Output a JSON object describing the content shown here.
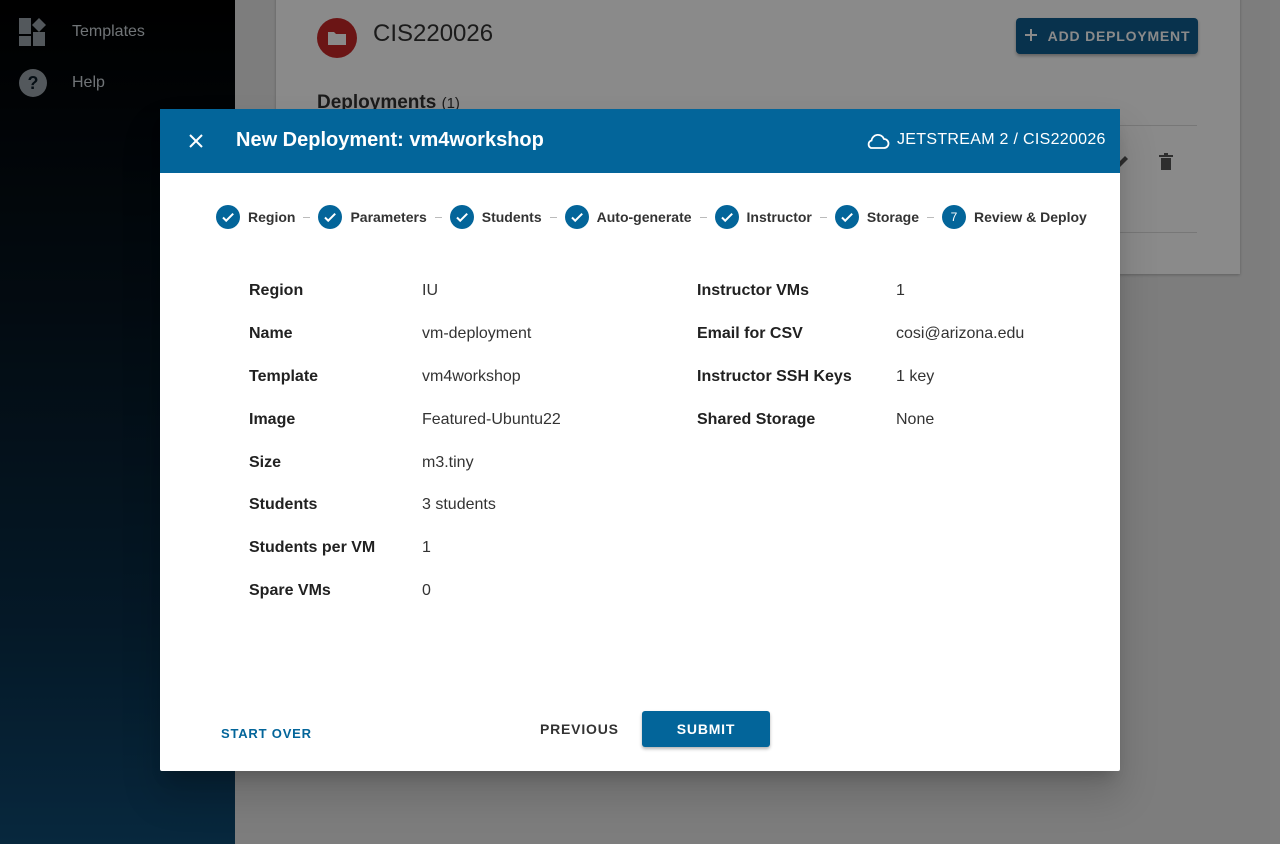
{
  "sidebar": {
    "items": [
      {
        "label": "Templates",
        "icon": "dashboard-icon"
      },
      {
        "label": "Help",
        "icon": "help-icon"
      }
    ]
  },
  "project": {
    "title": "CIS220026",
    "add_button_label": "ADD DEPLOYMENT",
    "deployments_heading": "Deployments",
    "deployments_count": "(1)"
  },
  "dialog": {
    "title": "New Deployment: vm4workshop",
    "context": "JETSTREAM 2 / CIS220026",
    "steps": [
      {
        "label": "Region",
        "marker": ""
      },
      {
        "label": "Parameters",
        "marker": ""
      },
      {
        "label": "Students",
        "marker": ""
      },
      {
        "label": "Auto-generate",
        "marker": ""
      },
      {
        "label": "Instructor",
        "marker": ""
      },
      {
        "label": "Storage",
        "marker": ""
      },
      {
        "label": "Review & Deploy",
        "marker": "7"
      }
    ],
    "summary_left": [
      {
        "label": "Region",
        "value": "IU"
      },
      {
        "label": "Name",
        "value": "vm-deployment"
      },
      {
        "label": "Template",
        "value": "vm4workshop"
      },
      {
        "label": "Image",
        "value": "Featured-Ubuntu22"
      },
      {
        "label": "Size",
        "value": "m3.tiny"
      },
      {
        "label": "Students",
        "value": "3 students"
      },
      {
        "label": "Students per VM",
        "value": "1"
      },
      {
        "label": "Spare VMs",
        "value": "0"
      }
    ],
    "summary_right": [
      {
        "label": "Instructor VMs",
        "value": "1"
      },
      {
        "label": "Email for CSV",
        "value": "cosi@arizona.edu"
      },
      {
        "label": "Instructor SSH Keys",
        "value": "1 key"
      },
      {
        "label": "Shared Storage",
        "value": "None"
      }
    ],
    "buttons": {
      "start_over": "START OVER",
      "previous": "PREVIOUS",
      "submit": "SUBMIT"
    }
  },
  "colors": {
    "primary": "#03659a",
    "project_avatar": "#c62828"
  }
}
